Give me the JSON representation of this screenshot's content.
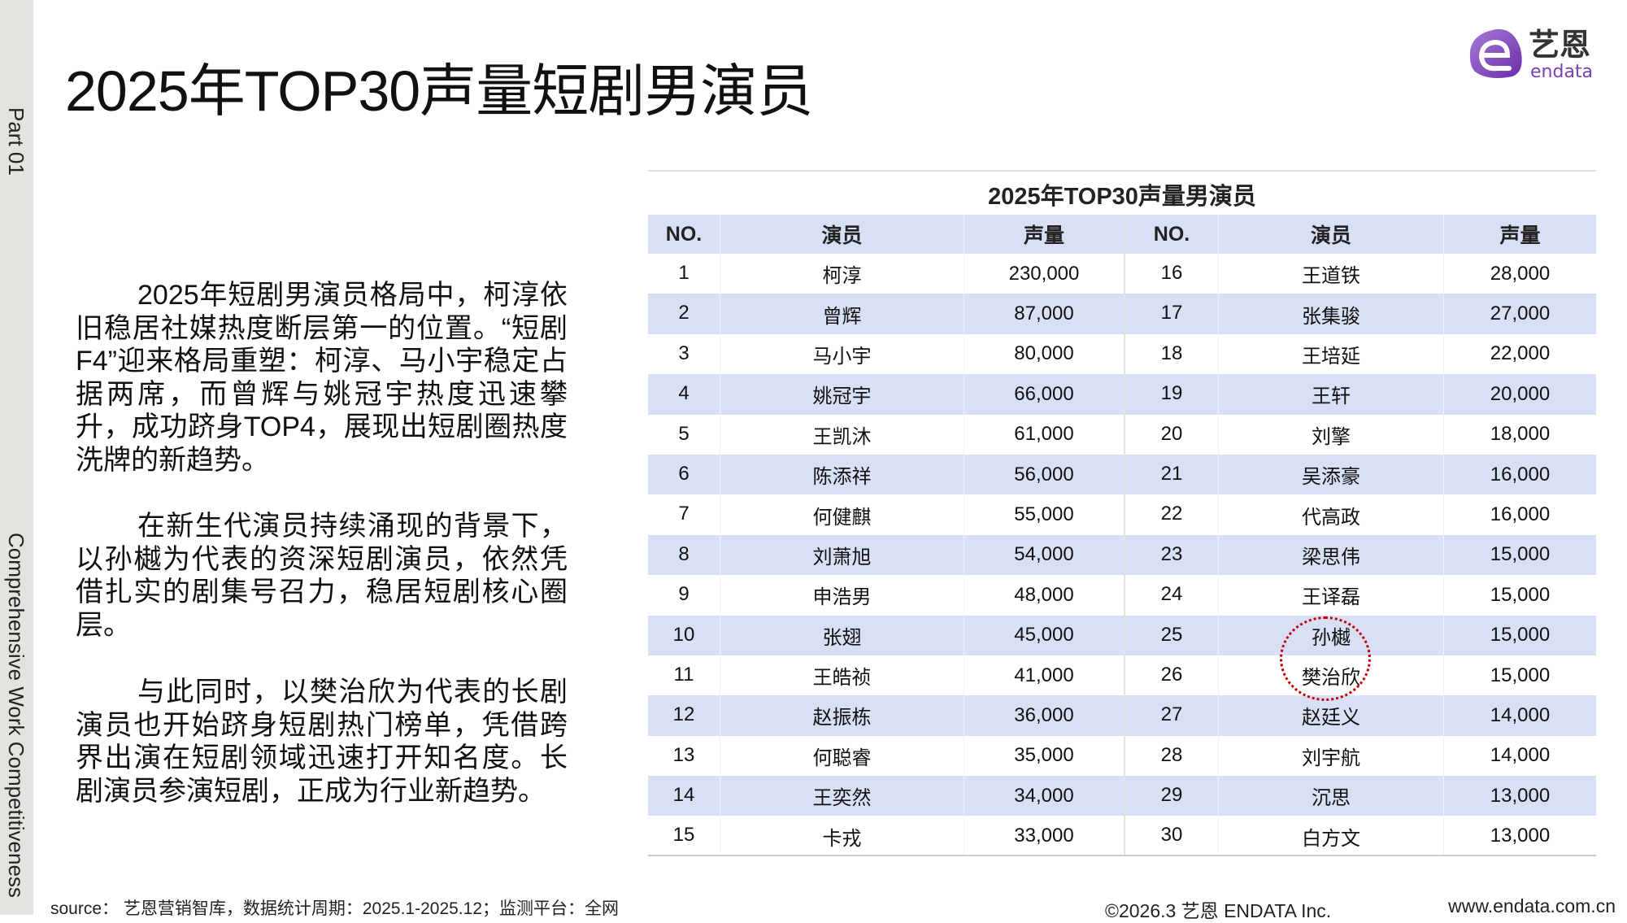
{
  "sidebar": {
    "part": "Part 01",
    "section": "Comprehensive Work Competitiveness"
  },
  "title": "2025年TOP30声量短剧男演员",
  "logo": {
    "cn": "艺恩",
    "en": "endata",
    "color": "#7b3fb8"
  },
  "paragraphs": [
    "2025年短剧男演员格局中，柯淳依旧稳居社媒热度断层第一的位置。“短剧F4”迎来格局重塑：柯淳、马小宇稳定占据两席，而曾辉与姚冠宇热度迅速攀升，成功跻身TOP4，展现出短剧圈热度洗牌的新趋势。",
    "在新生代演员持续涌现的背景下，以孙樾为代表的资深短剧演员，依然凭借扎实的剧集号召力，稳居短剧核心圈层。",
    "与此同时，以樊治欣为代表的长剧演员也开始跻身短剧热门榜单，凭借跨界出演在短剧领域迅速打开知名度。长剧演员参演短剧，正成为行业新趋势。"
  ],
  "table": {
    "title": "2025年TOP30声量男演员",
    "headers": [
      "NO.",
      "演员",
      "声量",
      "NO.",
      "演员",
      "声量"
    ],
    "rows": [
      [
        "1",
        "柯淳",
        "230,000",
        "16",
        "王道铁",
        "28,000"
      ],
      [
        "2",
        "曾辉",
        "87,000",
        "17",
        "张集骏",
        "27,000"
      ],
      [
        "3",
        "马小宇",
        "80,000",
        "18",
        "王培延",
        "22,000"
      ],
      [
        "4",
        "姚冠宇",
        "66,000",
        "19",
        "王轩",
        "20,000"
      ],
      [
        "5",
        "王凯沐",
        "61,000",
        "20",
        "刘擎",
        "18,000"
      ],
      [
        "6",
        "陈添祥",
        "56,000",
        "21",
        "吴添豪",
        "16,000"
      ],
      [
        "7",
        "何健麒",
        "55,000",
        "22",
        "代高政",
        "16,000"
      ],
      [
        "8",
        "刘萧旭",
        "54,000",
        "23",
        "梁思伟",
        "15,000"
      ],
      [
        "9",
        "申浩男",
        "48,000",
        "24",
        "王译磊",
        "15,000"
      ],
      [
        "10",
        "张翅",
        "45,000",
        "25",
        "孙樾",
        "15,000"
      ],
      [
        "11",
        "王皓祯",
        "41,000",
        "26",
        "樊治欣",
        "15,000"
      ],
      [
        "12",
        "赵振栋",
        "36,000",
        "27",
        "赵廷义",
        "14,000"
      ],
      [
        "13",
        "何聪睿",
        "35,000",
        "28",
        "刘宇航",
        "14,000"
      ],
      [
        "14",
        "王奕然",
        "34,000",
        "29",
        "沉思",
        "13,000"
      ],
      [
        "15",
        "卡戎",
        "33,000",
        "30",
        "白方文",
        "13,000"
      ]
    ],
    "row_stripe_color": "#d9e0f5",
    "highlight_color": "#c00000"
  },
  "footer": {
    "source": "source： 艺恩营销智库，数据统计周期：2025.1-2025.12；监测平台：全网",
    "copyright": "©2026.3  艺恩 ENDATA Inc.",
    "url": "www.endata.com.cn"
  }
}
